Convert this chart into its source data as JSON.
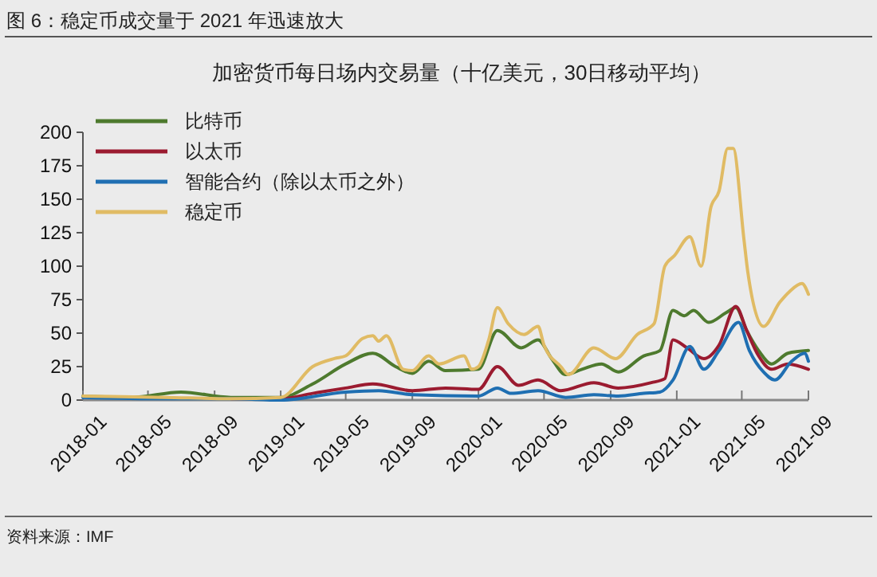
{
  "chart_data": {
    "type": "line",
    "title": "图 6：稳定币成交量于 2021 年迅速放大",
    "subtitle": "加密货币每日场内交易量（十亿美元，30日移动平均）",
    "annotations": [
      "资料来源：IMF"
    ],
    "xlim": [
      "2018-01-01",
      "2021-09-01"
    ],
    "xticks": [
      {
        "value": "2018-01-01",
        "label": "2018-01"
      },
      {
        "value": "2018-05-01",
        "label": "2018-05"
      },
      {
        "value": "2018-09-01",
        "label": "2018-09"
      },
      {
        "value": "2019-01-01",
        "label": "2019-01"
      },
      {
        "value": "2019-05-01",
        "label": "2019-05"
      },
      {
        "value": "2019-09-01",
        "label": "2019-09"
      },
      {
        "value": "2020-01-01",
        "label": "2020-01"
      },
      {
        "value": "2020-05-01",
        "label": "2020-05"
      },
      {
        "value": "2020-09-01",
        "label": "2020-09"
      },
      {
        "value": "2021-01-01",
        "label": "2021-01"
      },
      {
        "value": "2021-05-01",
        "label": "2021-05"
      },
      {
        "value": "2021-09-01",
        "label": "2021-09"
      }
    ],
    "ylim": [
      0,
      200
    ],
    "yticks": [
      0,
      25,
      50,
      75,
      100,
      125,
      150,
      175,
      200
    ],
    "grid": false,
    "legend": "top left",
    "line_style": "solid",
    "series": [
      {
        "name": "比特币",
        "color": "#4e7a2e",
        "x": [
          "2018-01-01",
          "2018-04-01",
          "2018-07-01",
          "2018-10-01",
          "2019-01-01",
          "2019-03-01",
          "2019-05-01",
          "2019-06-20",
          "2019-08-01",
          "2019-09-01",
          "2019-10-01",
          "2019-11-01",
          "2020-01-01",
          "2020-02-05",
          "2020-03-20",
          "2020-04-20",
          "2020-05-15",
          "2020-06-10",
          "2020-07-10",
          "2020-08-15",
          "2020-09-15",
          "2020-11-01",
          "2020-12-01",
          "2020-12-25",
          "2021-01-15",
          "2021-02-01",
          "2021-03-01",
          "2021-04-01",
          "2021-04-20",
          "2021-05-10",
          "2021-06-01",
          "2021-06-25",
          "2021-07-25",
          "2021-09-01"
        ],
        "values": [
          3,
          2,
          6,
          2,
          2,
          12,
          27,
          35,
          25,
          20,
          29,
          22,
          23,
          52,
          39,
          45,
          31,
          19,
          23,
          27,
          21,
          33,
          37,
          67,
          63,
          67,
          58,
          65,
          69,
          52,
          37,
          27,
          35,
          37
        ]
      },
      {
        "name": "以太币",
        "color": "#9b1b30",
        "x": [
          "2018-10-01",
          "2019-01-01",
          "2019-03-01",
          "2019-05-01",
          "2019-06-20",
          "2019-09-01",
          "2019-11-01",
          "2020-01-01",
          "2020-02-05",
          "2020-03-15",
          "2020-04-20",
          "2020-06-01",
          "2020-08-01",
          "2020-09-15",
          "2020-11-15",
          "2020-12-10",
          "2020-12-25",
          "2021-01-20",
          "2021-02-20",
          "2021-03-20",
          "2021-04-20",
          "2021-05-10",
          "2021-06-01",
          "2021-06-25",
          "2021-07-25",
          "2021-09-01"
        ],
        "values": [
          1,
          1,
          5,
          9,
          12,
          7,
          9,
          8,
          25,
          11,
          15,
          7,
          13,
          9,
          13,
          16,
          45,
          39,
          31,
          41,
          70,
          52,
          33,
          23,
          27,
          23
        ]
      },
      {
        "name": "智能合约（除以太币之外）",
        "color": "#1f6fb2",
        "x": [
          "2018-01-01",
          "2018-06-01",
          "2018-10-01",
          "2019-01-01",
          "2019-05-01",
          "2019-07-01",
          "2019-09-01",
          "2020-01-01",
          "2020-02-05",
          "2020-03-01",
          "2020-04-20",
          "2020-06-10",
          "2020-08-01",
          "2020-09-15",
          "2020-11-01",
          "2020-12-01",
          "2020-12-25",
          "2021-01-25",
          "2021-02-20",
          "2021-03-20",
          "2021-04-25",
          "2021-05-15",
          "2021-06-10",
          "2021-07-01",
          "2021-08-01",
          "2021-08-25",
          "2021-09-01"
        ],
        "values": [
          2,
          1,
          1,
          0,
          6,
          7,
          4,
          3,
          9,
          5,
          7,
          2,
          4,
          3,
          5,
          6,
          15,
          40,
          23,
          37,
          58,
          37,
          21,
          15,
          29,
          35,
          29
        ]
      },
      {
        "name": "稳定币",
        "color": "#e0bb64",
        "x": [
          "2018-01-01",
          "2018-06-01",
          "2018-10-01",
          "2019-01-01",
          "2019-03-01",
          "2019-04-10",
          "2019-05-01",
          "2019-06-01",
          "2019-06-20",
          "2019-07-01",
          "2019-07-15",
          "2019-08-15",
          "2019-09-01",
          "2019-10-01",
          "2019-10-20",
          "2019-12-05",
          "2019-12-20",
          "2020-01-01",
          "2020-01-20",
          "2020-02-05",
          "2020-02-25",
          "2020-03-25",
          "2020-04-20",
          "2020-05-01",
          "2020-06-01",
          "2020-06-15",
          "2020-08-01",
          "2020-09-10",
          "2020-10-20",
          "2020-11-20",
          "2020-12-10",
          "2020-12-28",
          "2021-01-25",
          "2021-02-15",
          "2021-03-05",
          "2021-03-20",
          "2021-04-05",
          "2021-04-15",
          "2021-05-05",
          "2021-05-12",
          "2021-06-10",
          "2021-07-10",
          "2021-07-28",
          "2021-08-20",
          "2021-09-01"
        ],
        "values": [
          3,
          2,
          1,
          2,
          25,
          31,
          33,
          46,
          48,
          44,
          48,
          23,
          22,
          33,
          27,
          33,
          23,
          25,
          45,
          69,
          57,
          49,
          55,
          41,
          25,
          19,
          39,
          31,
          49,
          57,
          100,
          108,
          122,
          100,
          144,
          156,
          188,
          188,
          120,
          96,
          55,
          73,
          81,
          87,
          79
        ]
      }
    ]
  }
}
